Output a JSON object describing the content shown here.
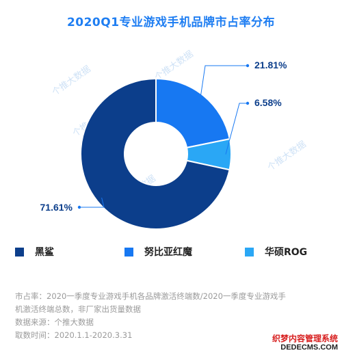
{
  "chart_data": {
    "type": "pie",
    "title": "2020Q1专业游戏手机品牌市占率分布",
    "donut": true,
    "slices": [
      {
        "label": "黑鲨",
        "value": 71.61,
        "display": "71.61%",
        "color": "#0c3e8b"
      },
      {
        "label": "努比亚红魔",
        "value": 21.81,
        "display": "21.81%",
        "color": "#1778f2"
      },
      {
        "label": "华硕ROG",
        "value": 6.58,
        "display": "6.58%",
        "color": "#2aa7f5"
      }
    ],
    "legend_placement": "bottom"
  },
  "notes": [
    "市占率：2020一季度专业游戏手机各品牌激活终端数/2020一季度专业游戏手",
    "机激活终端总数，非厂家出货量数据",
    "数据来源：个推大数据",
    "取数时间：2020.1.1-2020.3.31"
  ],
  "watermark_text": "个推大数据",
  "corner_watermark": {
    "line1": "织梦内容管理系统",
    "line2": "DEDECMS.COM"
  },
  "colors": {
    "title": "#1f7ef2",
    "label_text": "#0c3e8b",
    "leader": "#1778f2"
  }
}
